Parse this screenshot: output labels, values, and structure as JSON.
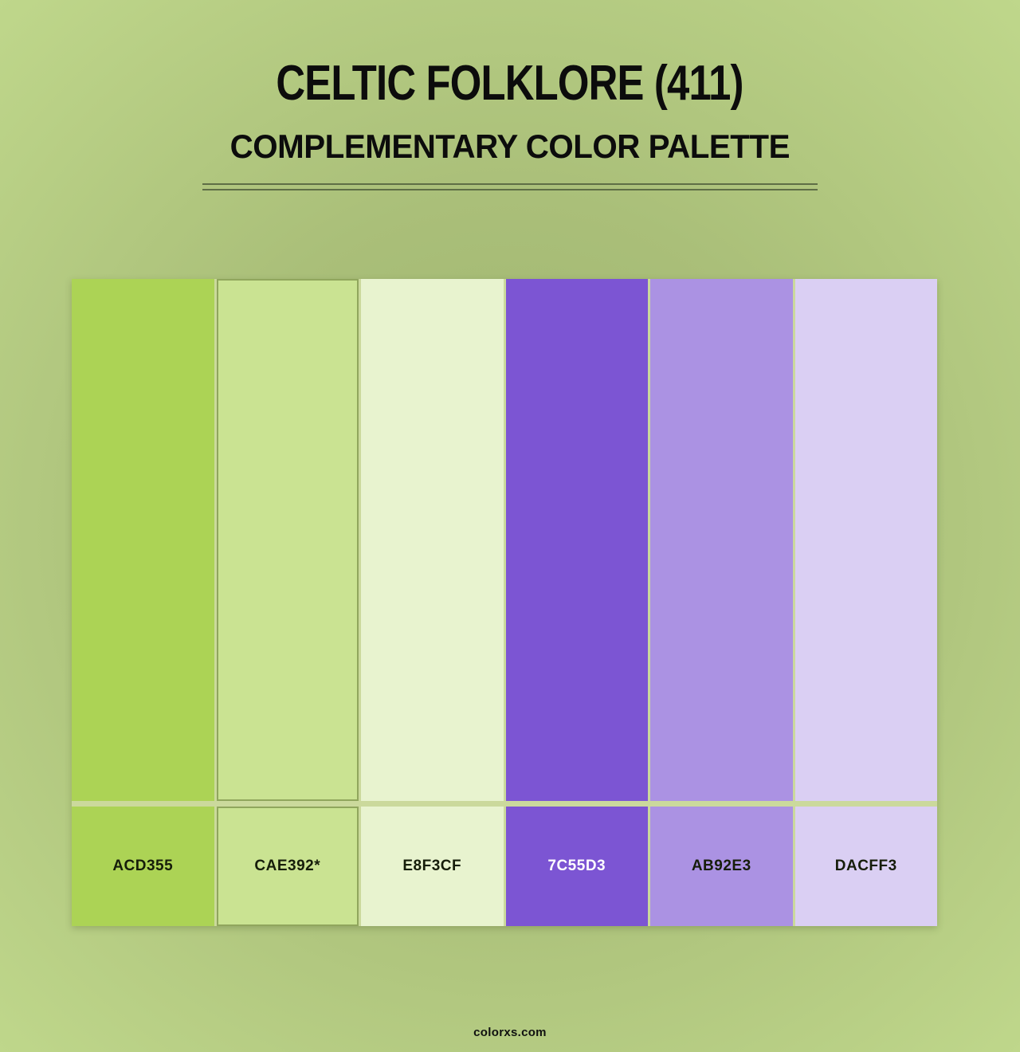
{
  "page": {
    "title": "CELTIC FOLKLORE (411)",
    "subtitle": "COMPLEMENTARY COLOR PALETTE",
    "footer": "colorxs.com"
  },
  "palette": {
    "swatches": [
      {
        "label": "ACD355",
        "hex": "#ACD355",
        "text_color": "#161d0a",
        "starred": false
      },
      {
        "label": "CAE392*",
        "hex": "#CAE392",
        "text_color": "#161d0a",
        "starred": true
      },
      {
        "label": "E8F3CF",
        "hex": "#E8F3CF",
        "text_color": "#161d0a",
        "starred": false
      },
      {
        "label": "7C55D3",
        "hex": "#7C55D3",
        "text_color": "#FFFFFF",
        "starred": false
      },
      {
        "label": "AB92E3",
        "hex": "#AB92E3",
        "text_color": "#161d0a",
        "starred": false
      },
      {
        "label": "DACFF3",
        "hex": "#DACFF3",
        "text_color": "#161d0a",
        "starred": false
      }
    ]
  },
  "theme": {
    "bg_center": "#9db46e",
    "bg_edge": "#bfd78b",
    "gap_color": "#cbd99c",
    "separator_color": "#5e6e46",
    "text_color": "#0c0c0c"
  }
}
